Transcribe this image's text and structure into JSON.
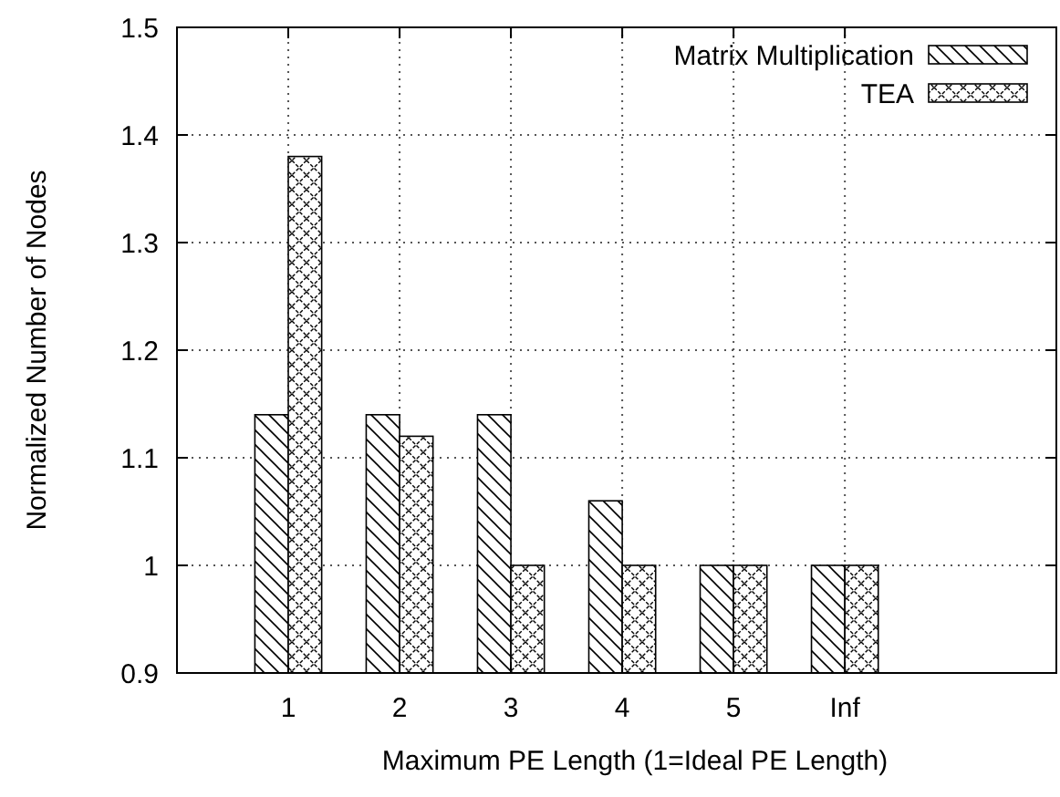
{
  "chart_data": {
    "type": "bar",
    "xlabel": "Maximum PE Length (1=Ideal PE Length)",
    "ylabel": "Normalized Number of Nodes",
    "categories": [
      "1",
      "2",
      "3",
      "4",
      "5",
      "Inf"
    ],
    "series": [
      {
        "name": "Matrix Multiplication",
        "color": "#000000",
        "values": [
          1.14,
          1.14,
          1.14,
          1.06,
          1,
          1
        ]
      },
      {
        "name": "TEA",
        "color": "#000000",
        "values": [
          1.38,
          1.12,
          1,
          1,
          1,
          1
        ]
      }
    ],
    "ylim": [
      0.9,
      1.5
    ],
    "yticks": [
      0.9,
      1,
      1.1,
      1.2,
      1.3,
      1.4,
      1.5
    ],
    "grid": true,
    "legend": "top right"
  }
}
